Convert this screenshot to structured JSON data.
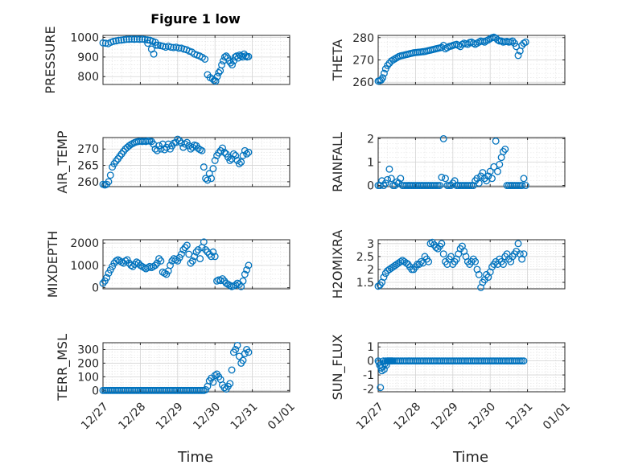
{
  "figure": {
    "title": "Figure 1 low",
    "marker_color": "#0072BD",
    "x_label": "Time",
    "x_tick_labels": [
      "12/27",
      "12/28",
      "12/29",
      "12/30",
      "12/31",
      "01/01"
    ]
  },
  "chart_data": [
    {
      "type": "scatter",
      "id": "pressure",
      "ylabel": "PRESSURE",
      "title": "Figure 1 low",
      "xlim": [
        0,
        5
      ],
      "ylim": [
        760,
        1010
      ],
      "yticks": [
        800,
        900,
        1000
      ],
      "grid": true,
      "x": [
        0,
        0.07,
        0.14,
        0.21,
        0.28,
        0.35,
        0.42,
        0.49,
        0.56,
        0.63,
        0.7,
        0.77,
        0.84,
        0.91,
        0.98,
        1.05,
        1.12,
        1.19,
        1.26,
        1.33,
        1.4,
        1.47,
        1.54,
        1.61,
        1.68,
        1.75,
        1.82,
        1.89,
        1.96,
        2.03,
        2.1,
        2.17,
        2.24,
        2.31,
        2.38,
        2.45,
        2.52,
        2.59,
        2.66,
        2.73,
        2.8,
        2.87,
        2.94,
        2.98,
        3.02,
        3.06,
        3.1,
        3.14,
        3.18,
        3.22,
        3.26,
        3.3,
        3.34,
        3.38,
        3.42,
        3.46,
        3.5,
        3.54,
        3.58,
        3.62,
        3.66,
        3.7,
        3.74,
        3.78,
        3.82,
        3.86,
        3.9,
        1.3,
        1.36,
        1.42,
        1.2
      ],
      "y": [
        972,
        970,
        968,
        975,
        980,
        982,
        985,
        986,
        988,
        990,
        990,
        991,
        990,
        991,
        990,
        991,
        989,
        987,
        985,
        980,
        975,
        960,
        958,
        955,
        950,
        955,
        950,
        948,
        950,
        945,
        945,
        940,
        937,
        930,
        925,
        915,
        910,
        905,
        898,
        889,
        810,
        795,
        788,
        780,
        777,
        800,
        820,
        830,
        860,
        880,
        900,
        905,
        895,
        880,
        870,
        860,
        880,
        900,
        905,
        895,
        910,
        905,
        900,
        915,
        905,
        900,
        902,
        940,
        915,
        960,
        970
      ]
    },
    {
      "type": "scatter",
      "id": "theta",
      "ylabel": "THETA",
      "xlim": [
        0,
        5
      ],
      "ylim": [
        259,
        281
      ],
      "yticks": [
        260,
        270,
        280
      ],
      "grid": true,
      "x": [
        0,
        0.04,
        0.08,
        0.12,
        0.16,
        0.2,
        0.25,
        0.3,
        0.35,
        0.4,
        0.45,
        0.5,
        0.55,
        0.6,
        0.65,
        0.7,
        0.75,
        0.8,
        0.85,
        0.9,
        0.95,
        1.0,
        1.05,
        1.1,
        1.15,
        1.2,
        1.25,
        1.3,
        1.35,
        1.4,
        1.45,
        1.5,
        1.55,
        1.6,
        1.65,
        1.7,
        1.75,
        1.8,
        1.85,
        1.9,
        1.95,
        2.0,
        2.05,
        2.1,
        2.15,
        2.2,
        2.25,
        2.3,
        2.35,
        2.4,
        2.45,
        2.5,
        2.55,
        2.6,
        2.65,
        2.7,
        2.75,
        2.8,
        2.85,
        2.9,
        2.95,
        3.0,
        3.05,
        3.1,
        3.15,
        3.2,
        3.25,
        3.3,
        3.35,
        3.4,
        3.45,
        3.5,
        3.55,
        3.6,
        3.65,
        3.7,
        3.75,
        3.8,
        3.85,
        3.9,
        3.95
      ],
      "y": [
        260.5,
        260.7,
        261,
        262,
        264,
        266,
        267.5,
        268.5,
        269.5,
        270,
        270.5,
        271,
        271.5,
        271.8,
        272,
        272.2,
        272.4,
        272.6,
        272.8,
        273,
        273.2,
        273.3,
        273.4,
        273.5,
        273.6,
        273.7,
        273.8,
        274,
        274.2,
        274.4,
        274.6,
        274.8,
        275,
        275.2,
        275.4,
        275.6,
        276.5,
        275,
        275.5,
        276,
        276.2,
        276.5,
        276.8,
        277,
        276.5,
        276,
        277,
        277.5,
        277.2,
        277,
        277.8,
        278,
        277.5,
        277,
        277.5,
        278,
        278.5,
        278.3,
        278,
        278.6,
        279,
        279.5,
        280,
        280.2,
        279.8,
        279,
        278.5,
        278.5,
        278,
        278.2,
        278.3,
        278,
        278.2,
        278.5,
        277.5,
        276,
        272,
        274,
        276.5,
        277.5,
        278
      ]
    },
    {
      "type": "scatter",
      "id": "air_temp",
      "ylabel": "AIR_TEMP",
      "xlim": [
        0,
        5
      ],
      "ylim": [
        258.5,
        273.5
      ],
      "yticks": [
        260,
        265,
        270
      ],
      "grid": true,
      "x": [
        0,
        0.05,
        0.1,
        0.15,
        0.2,
        0.25,
        0.3,
        0.35,
        0.4,
        0.45,
        0.5,
        0.55,
        0.6,
        0.65,
        0.7,
        0.75,
        0.8,
        0.85,
        0.9,
        0.95,
        1.0,
        1.05,
        1.1,
        1.15,
        1.2,
        1.25,
        1.3,
        1.35,
        1.4,
        1.45,
        1.5,
        1.55,
        1.6,
        1.65,
        1.7,
        1.75,
        1.8,
        1.85,
        1.9,
        1.95,
        2.0,
        2.05,
        2.1,
        2.15,
        2.2,
        2.25,
        2.3,
        2.35,
        2.4,
        2.45,
        2.5,
        2.55,
        2.6,
        2.65,
        2.7,
        2.75,
        2.8,
        2.85,
        2.9,
        2.95,
        3.0,
        3.05,
        3.1,
        3.15,
        3.2,
        3.25,
        3.3,
        3.35,
        3.4,
        3.45,
        3.5,
        3.55,
        3.6,
        3.65,
        3.7,
        3.75,
        3.8,
        3.85,
        3.9
      ],
      "y": [
        259.2,
        259.0,
        259.2,
        260.0,
        262.0,
        264.5,
        265.5,
        266.3,
        267.0,
        267.8,
        268.5,
        269.3,
        270.0,
        270.5,
        271.0,
        271.4,
        271.7,
        272.0,
        272.2,
        272.3,
        272.4,
        272.3,
        272.4,
        272.3,
        272.5,
        272.4,
        272.3,
        271.5,
        270.0,
        269.5,
        271.0,
        270.0,
        271.5,
        269.8,
        270.5,
        271.5,
        270.0,
        271.0,
        271.8,
        272.0,
        273.0,
        272.5,
        271.8,
        270.5,
        271.5,
        272.0,
        271.0,
        270.0,
        270.5,
        271.2,
        271.0,
        270.2,
        269.8,
        269.5,
        264.5,
        261.0,
        260.5,
        262.5,
        261.0,
        264.0,
        266.5,
        268.0,
        268.8,
        269.5,
        270.3,
        269.0,
        268.5,
        267.5,
        266.5,
        267.0,
        268.5,
        268.0,
        266.5,
        265.5,
        266.0,
        268.0,
        269.5,
        268.5,
        269.0
      ]
    },
    {
      "type": "scatter",
      "id": "rainfall",
      "ylabel": "RAINFALL",
      "xlim": [
        0,
        5
      ],
      "ylim": [
        -0.05,
        2.05
      ],
      "yticks": [
        0,
        1,
        2
      ],
      "grid": true,
      "x": [
        0,
        0.05,
        0.1,
        0.15,
        0.2,
        0.25,
        0.3,
        0.35,
        0.4,
        0.45,
        0.5,
        0.55,
        0.6,
        0.65,
        0.7,
        0.75,
        0.8,
        0.85,
        0.9,
        0.95,
        1.0,
        1.05,
        1.1,
        1.15,
        1.2,
        1.25,
        1.3,
        1.35,
        1.4,
        1.45,
        1.5,
        1.55,
        1.6,
        1.65,
        1.7,
        1.75,
        1.8,
        1.85,
        1.9,
        1.95,
        2.0,
        2.05,
        2.1,
        2.15,
        2.2,
        2.25,
        2.3,
        2.35,
        2.4,
        2.45,
        2.5,
        2.55,
        2.6,
        2.65,
        2.7,
        2.75,
        2.8,
        2.85,
        2.9,
        2.95,
        3.0,
        3.05,
        3.1,
        3.15,
        3.2,
        3.25,
        3.3,
        3.35,
        3.4,
        3.45,
        3.5,
        3.55,
        3.6,
        3.65,
        3.7,
        3.75,
        3.8,
        3.85,
        3.9,
        3.95
      ],
      "y": [
        0,
        0,
        0.2,
        0,
        0.1,
        0.25,
        0.7,
        0.3,
        0,
        0,
        0.15,
        0.1,
        0.3,
        0,
        0,
        0,
        0,
        0,
        0,
        0,
        0,
        0,
        0,
        0,
        0,
        0,
        0,
        0,
        0,
        0,
        0,
        0,
        0,
        0,
        0.35,
        2.0,
        0.3,
        0,
        0,
        0,
        0.1,
        0.2,
        0,
        0,
        0,
        0,
        0,
        0,
        0,
        0,
        0,
        0,
        0.2,
        0.3,
        0.1,
        0.4,
        0.55,
        0.3,
        0.2,
        0.4,
        0.6,
        0.3,
        0.8,
        1.9,
        0.6,
        0.9,
        1.2,
        1.45,
        1.55,
        0,
        0,
        0,
        0,
        0,
        0,
        0,
        0,
        0,
        0.3,
        0
      ]
    },
    {
      "type": "scatter",
      "id": "mixdepth",
      "ylabel": "MIXDEPTH",
      "xlim": [
        0,
        5
      ],
      "ylim": [
        -50,
        2150
      ],
      "yticks": [
        0,
        1000,
        2000
      ],
      "grid": true,
      "x": [
        0,
        0.05,
        0.1,
        0.15,
        0.2,
        0.25,
        0.3,
        0.35,
        0.4,
        0.45,
        0.5,
        0.55,
        0.6,
        0.65,
        0.7,
        0.75,
        0.8,
        0.85,
        0.9,
        0.95,
        1.0,
        1.05,
        1.1,
        1.15,
        1.2,
        1.25,
        1.3,
        1.35,
        1.4,
        1.45,
        1.5,
        1.55,
        1.6,
        1.65,
        1.7,
        1.75,
        1.8,
        1.85,
        1.9,
        1.95,
        2.0,
        2.05,
        2.1,
        2.15,
        2.2,
        2.25,
        2.3,
        2.35,
        2.4,
        2.45,
        2.5,
        2.55,
        2.6,
        2.65,
        2.7,
        2.75,
        2.8,
        2.85,
        2.9,
        2.95,
        3.0,
        3.05,
        3.1,
        3.15,
        3.2,
        3.25,
        3.3,
        3.35,
        3.4,
        3.45,
        3.5,
        3.55,
        3.6,
        3.65,
        3.7,
        3.75,
        3.8,
        3.85,
        3.9
      ],
      "y": [
        200,
        300,
        450,
        650,
        800,
        950,
        1100,
        1200,
        1250,
        1200,
        1150,
        1100,
        1200,
        1250,
        1100,
        1000,
        950,
        1050,
        1150,
        1100,
        1000,
        950,
        900,
        850,
        900,
        950,
        900,
        950,
        1000,
        1100,
        1300,
        1200,
        700,
        650,
        600,
        750,
        1000,
        1200,
        1300,
        1250,
        1200,
        1350,
        1500,
        1700,
        1800,
        1900,
        1500,
        1100,
        1200,
        1400,
        1600,
        1700,
        1300,
        1800,
        2050,
        1700,
        1600,
        1500,
        1400,
        1600,
        1400,
        300,
        350,
        320,
        400,
        300,
        200,
        150,
        100,
        50,
        80,
        120,
        200,
        150,
        50,
        300,
        600,
        800,
        1000
      ]
    },
    {
      "type": "scatter",
      "id": "h2omixra",
      "ylabel": "H2OMIXRA",
      "xlim": [
        0,
        5
      ],
      "ylim": [
        1.25,
        3.15
      ],
      "yticks": [
        1.5,
        2,
        2.5,
        3
      ],
      "grid": true,
      "x": [
        0,
        0.05,
        0.1,
        0.15,
        0.2,
        0.25,
        0.3,
        0.35,
        0.4,
        0.45,
        0.5,
        0.55,
        0.6,
        0.65,
        0.7,
        0.75,
        0.8,
        0.85,
        0.9,
        0.95,
        1.0,
        1.05,
        1.1,
        1.15,
        1.2,
        1.25,
        1.3,
        1.35,
        1.4,
        1.45,
        1.5,
        1.55,
        1.6,
        1.65,
        1.7,
        1.75,
        1.8,
        1.85,
        1.9,
        1.95,
        2.0,
        2.05,
        2.1,
        2.15,
        2.2,
        2.25,
        2.3,
        2.35,
        2.4,
        2.45,
        2.5,
        2.55,
        2.6,
        2.65,
        2.7,
        2.75,
        2.8,
        2.85,
        2.9,
        2.95,
        3.0,
        3.05,
        3.1,
        3.15,
        3.2,
        3.25,
        3.3,
        3.35,
        3.4,
        3.45,
        3.5,
        3.55,
        3.6,
        3.65,
        3.7,
        3.75,
        3.8,
        3.85,
        3.9
      ],
      "y": [
        1.35,
        1.4,
        1.5,
        1.7,
        1.85,
        1.95,
        2.0,
        2.05,
        2.1,
        2.15,
        2.2,
        2.25,
        2.3,
        2.35,
        2.3,
        2.25,
        2.2,
        2.1,
        2.0,
        2.0,
        2.1,
        2.2,
        2.2,
        2.3,
        2.25,
        2.5,
        2.4,
        2.3,
        3.0,
        3.05,
        2.95,
        2.85,
        2.8,
        2.9,
        3.0,
        2.6,
        2.3,
        2.2,
        2.4,
        2.5,
        2.2,
        2.3,
        2.4,
        2.6,
        2.8,
        2.9,
        2.7,
        2.5,
        2.3,
        2.2,
        2.3,
        2.4,
        2.3,
        2.0,
        1.8,
        1.3,
        1.5,
        1.6,
        1.8,
        1.7,
        1.9,
        2.1,
        2.2,
        2.3,
        2.2,
        2.4,
        2.3,
        2.2,
        2.5,
        2.6,
        2.4,
        2.3,
        2.5,
        2.6,
        2.7,
        3.0,
        2.6,
        2.4,
        2.6
      ]
    },
    {
      "type": "scatter",
      "id": "terr_msl",
      "ylabel": "TERR_MSL",
      "xlim": [
        0,
        5
      ],
      "ylim": [
        -10,
        350
      ],
      "yticks": [
        0,
        100,
        200,
        300
      ],
      "grid": true,
      "x": [
        0,
        0.05,
        0.1,
        0.15,
        0.2,
        0.25,
        0.3,
        0.35,
        0.4,
        0.45,
        0.5,
        0.55,
        0.6,
        0.65,
        0.7,
        0.75,
        0.8,
        0.85,
        0.9,
        0.95,
        1.0,
        1.05,
        1.1,
        1.15,
        1.2,
        1.25,
        1.3,
        1.35,
        1.4,
        1.45,
        1.5,
        1.55,
        1.6,
        1.65,
        1.7,
        1.75,
        1.8,
        1.85,
        1.9,
        1.95,
        2.0,
        2.05,
        2.1,
        2.15,
        2.2,
        2.25,
        2.3,
        2.35,
        2.4,
        2.45,
        2.5,
        2.55,
        2.6,
        2.65,
        2.7,
        2.75,
        2.8,
        2.85,
        2.9,
        2.95,
        3.0,
        3.05,
        3.1,
        3.15,
        3.2,
        3.25,
        3.3,
        3.35,
        3.4,
        3.45,
        3.5,
        3.55,
        3.6,
        3.65,
        3.7,
        3.75,
        3.8,
        3.85,
        3.9
      ],
      "y": [
        0,
        0,
        0,
        0,
        0,
        0,
        0,
        0,
        0,
        0,
        0,
        0,
        0,
        0,
        0,
        0,
        0,
        0,
        0,
        0,
        0,
        0,
        0,
        0,
        0,
        0,
        0,
        0,
        0,
        0,
        0,
        0,
        0,
        0,
        0,
        0,
        0,
        0,
        0,
        0,
        0,
        0,
        0,
        0,
        0,
        0,
        0,
        0,
        0,
        0,
        0,
        0,
        0,
        0,
        0,
        5,
        30,
        70,
        90,
        60,
        110,
        120,
        100,
        80,
        40,
        20,
        10,
        30,
        50,
        150,
        280,
        300,
        330,
        250,
        200,
        220,
        270,
        300,
        280
      ]
    },
    {
      "type": "scatter",
      "id": "sun_flux",
      "ylabel": "SUN_FLUX",
      "xlim": [
        0,
        5
      ],
      "ylim": [
        -2.2,
        1.3
      ],
      "yticks": [
        -2,
        -1,
        0,
        1
      ],
      "grid": true,
      "x": [
        0,
        0.02,
        0.04,
        0.06,
        0.08,
        0.1,
        0.12,
        0.14,
        0.16,
        0.18,
        0.2,
        0.22,
        0.24,
        0.26,
        0.28,
        0.3,
        0.32,
        0.34,
        0.36,
        0.38,
        0.4,
        0.45,
        0.5,
        0.55,
        0.6,
        0.65,
        0.7,
        0.75,
        0.8,
        0.85,
        0.9,
        0.95,
        1.0,
        1.05,
        1.1,
        1.15,
        1.2,
        1.25,
        1.3,
        1.35,
        1.4,
        1.45,
        1.5,
        1.55,
        1.6,
        1.65,
        1.7,
        1.75,
        1.8,
        1.85,
        1.9,
        1.95,
        2.0,
        2.05,
        2.1,
        2.15,
        2.2,
        2.25,
        2.3,
        2.35,
        2.4,
        2.45,
        2.5,
        2.55,
        2.6,
        2.65,
        2.7,
        2.75,
        2.8,
        2.85,
        2.9,
        2.95,
        3.0,
        3.05,
        3.1,
        3.15,
        3.2,
        3.25,
        3.3,
        3.35,
        3.4,
        3.45,
        3.5,
        3.55,
        3.6,
        3.65,
        3.7,
        3.75,
        3.8,
        3.85,
        3.9
      ],
      "y": [
        0,
        -0.1,
        -0.3,
        -1.9,
        -0.5,
        -0.7,
        -0.4,
        0,
        -0.6,
        -0.2,
        0,
        -0.3,
        0,
        0,
        0,
        0,
        0,
        0,
        0,
        0,
        0,
        0,
        0,
        0,
        0,
        0,
        0,
        0,
        0,
        0,
        0,
        0,
        0,
        0,
        0,
        0,
        0,
        0,
        0,
        0,
        0,
        0,
        0,
        0,
        0,
        0,
        0,
        0,
        0,
        0,
        0,
        0,
        0,
        0,
        0,
        0,
        0,
        0,
        0,
        0,
        0,
        0,
        0,
        0,
        0,
        0,
        0,
        0,
        0,
        0,
        0,
        0,
        0,
        0,
        0,
        0,
        0,
        0,
        0,
        0,
        0,
        0,
        0,
        0,
        0,
        0,
        0,
        0,
        0,
        0,
        0
      ]
    }
  ]
}
